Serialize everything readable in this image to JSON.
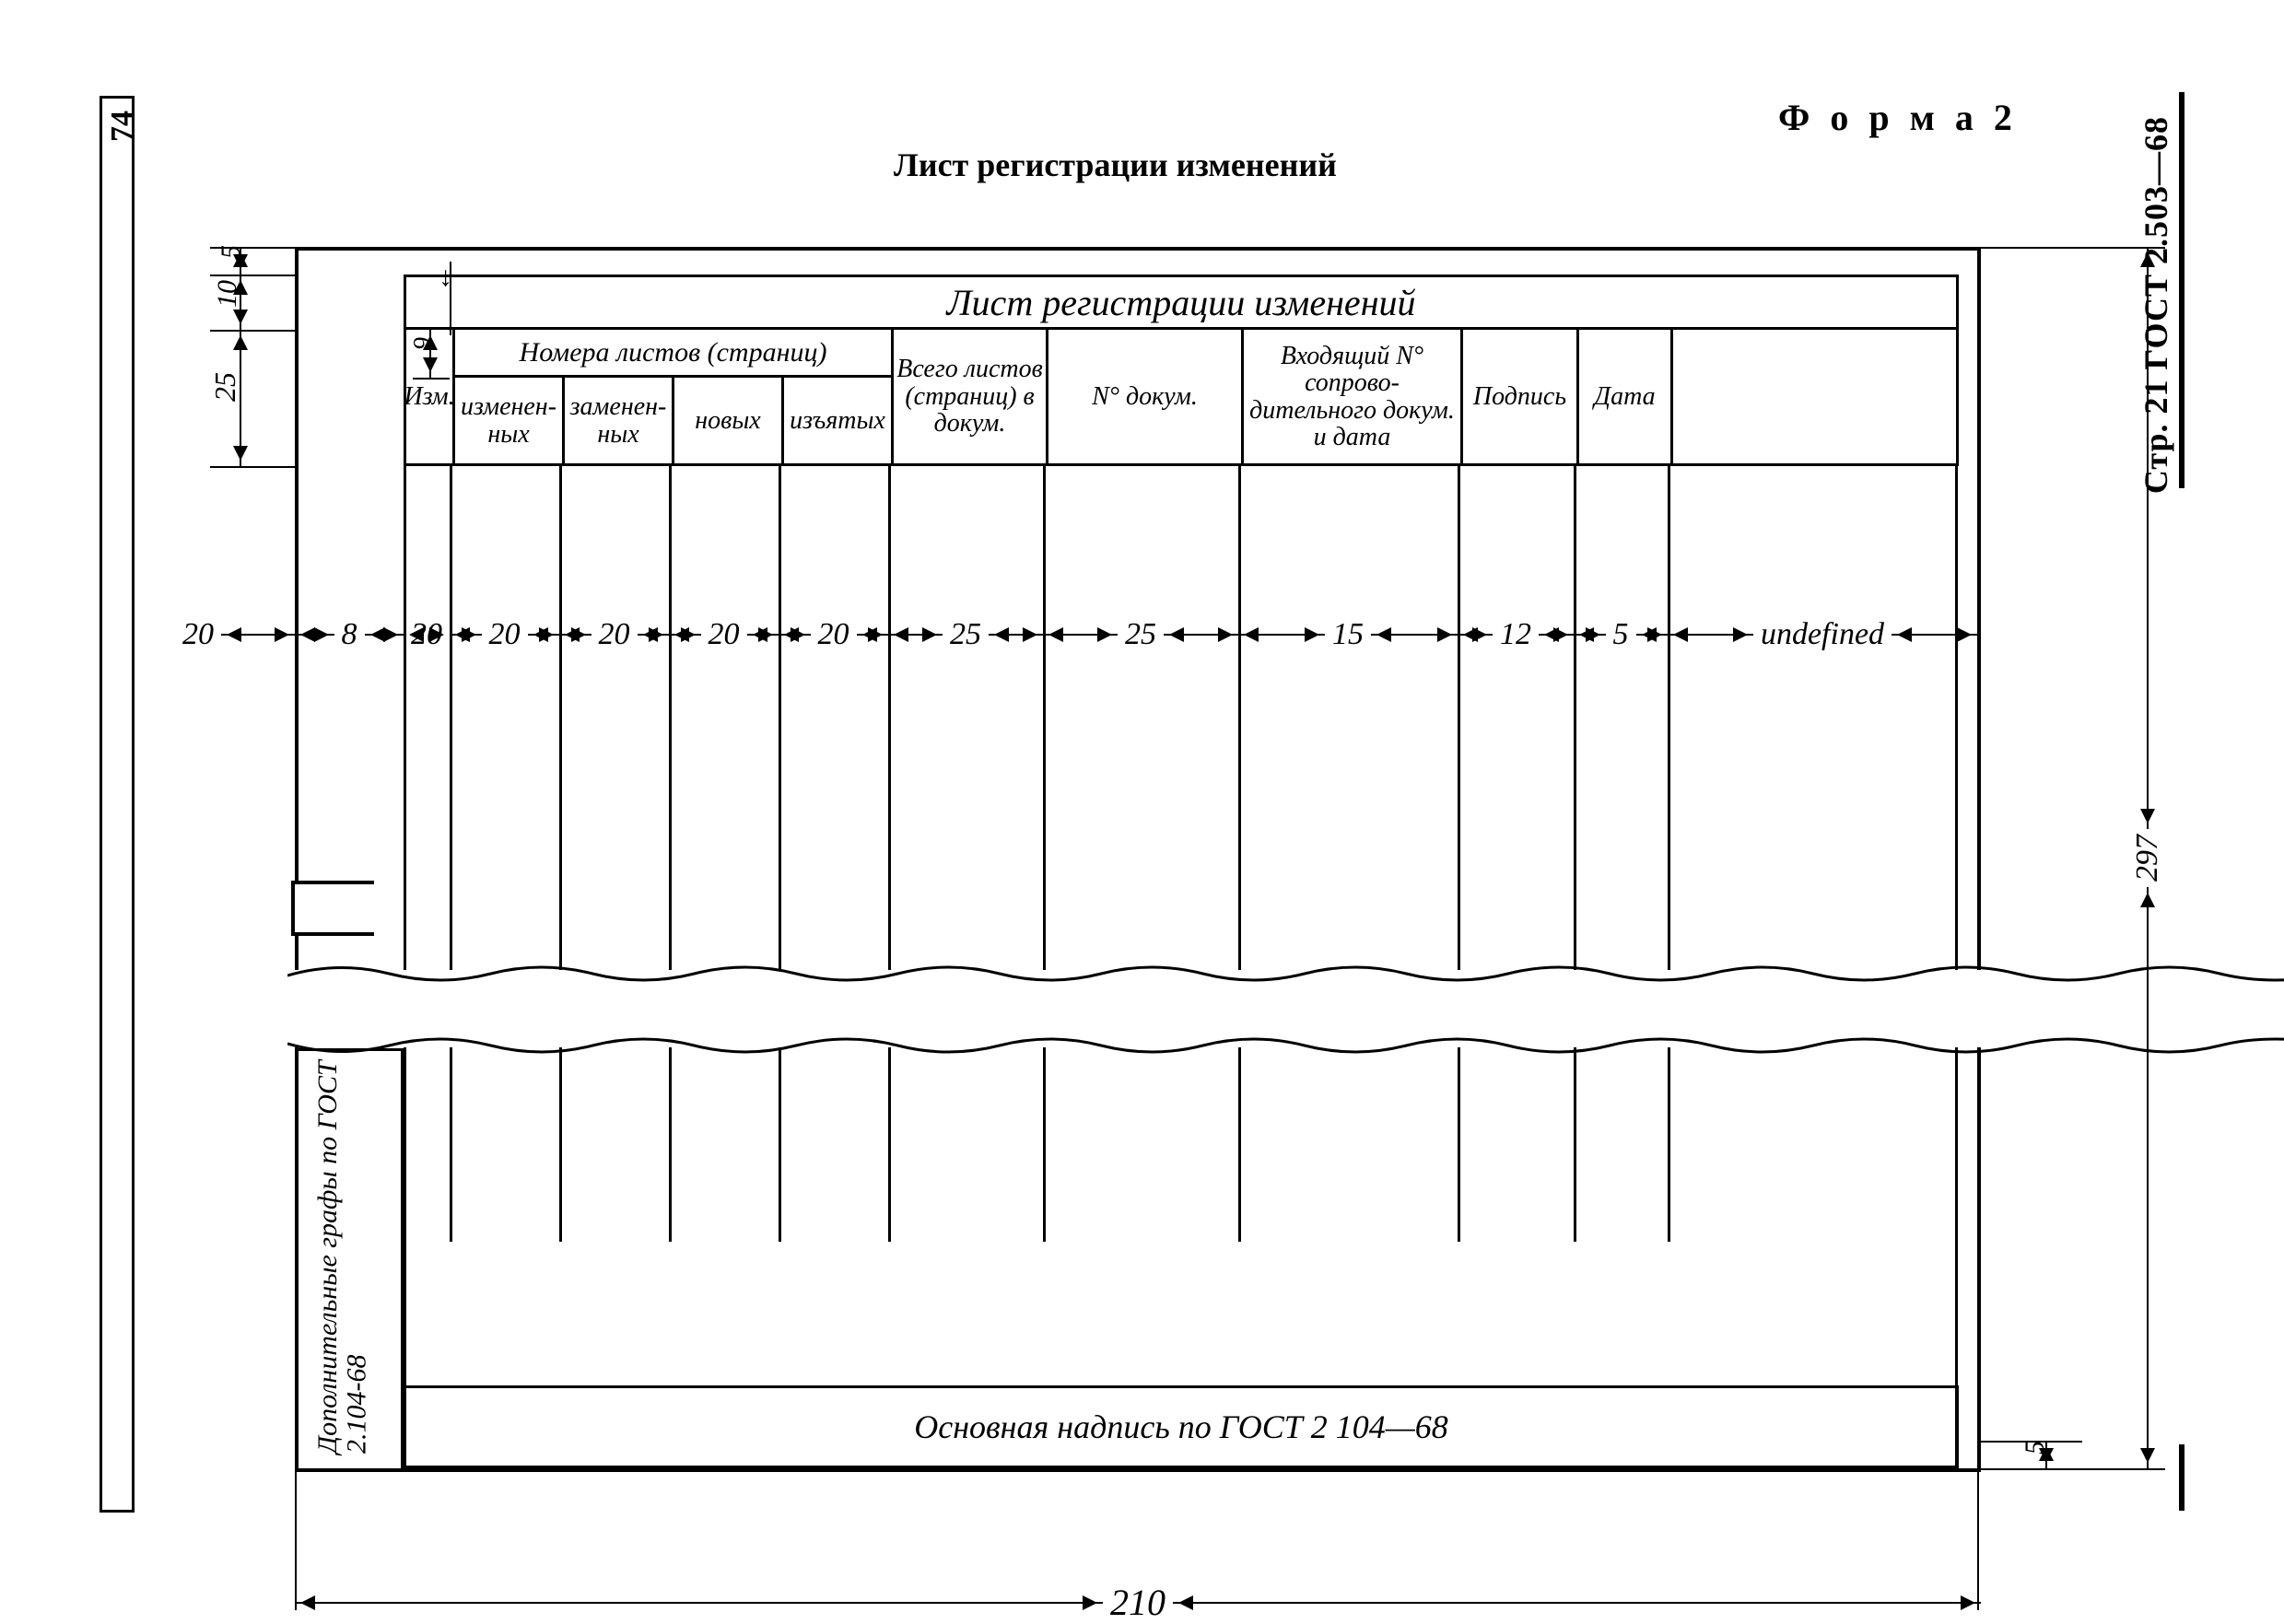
{
  "page_number_even": "74",
  "page_header_right": "Стр. 21 ГОСТ 2.503—68",
  "form_label": "Ф о р м а 2",
  "page_title": "Лист регистрации изменений",
  "frame_title": "Лист регистрации изменений",
  "columns": {
    "izm": "Изм.",
    "sub_header": "Номера листов (страниц)",
    "sub1": "изменен-\nных",
    "sub2": "заменен-\nных",
    "sub3": "новых",
    "sub4": "изъятых",
    "total": "Всего\nлистов\n(страниц)\nв докум.",
    "docno": "N°\nдокум.",
    "incoming": "Входящий\nN° сопрово-\nдительного\nдокум.\nи дата",
    "sign": "Подпись",
    "date": "Дата"
  },
  "footer_text": "Основная надпись по ГОСТ 2 104—68",
  "side_note": "Дополнительные графы\nпо ГОСТ 2.104-68",
  "col_widths_mm": {
    "binding": 20,
    "izm": 8,
    "sub1": 20,
    "sub2": 20,
    "sub3": 20,
    "sub4": 20,
    "total": 20,
    "docno": 25,
    "incoming": 25,
    "sign": 15,
    "date": 12,
    "right_margin": 5
  },
  "dims": {
    "top_gap": "5",
    "title_h": "10",
    "header_h": "25",
    "subhead_h": "9",
    "page_w": "210",
    "page_h": "297",
    "bottom_margin": "5",
    "cols": [
      "20",
      "8",
      "20",
      "20",
      "20",
      "20",
      "20",
      "25",
      "25",
      "15",
      "12",
      "5"
    ]
  }
}
